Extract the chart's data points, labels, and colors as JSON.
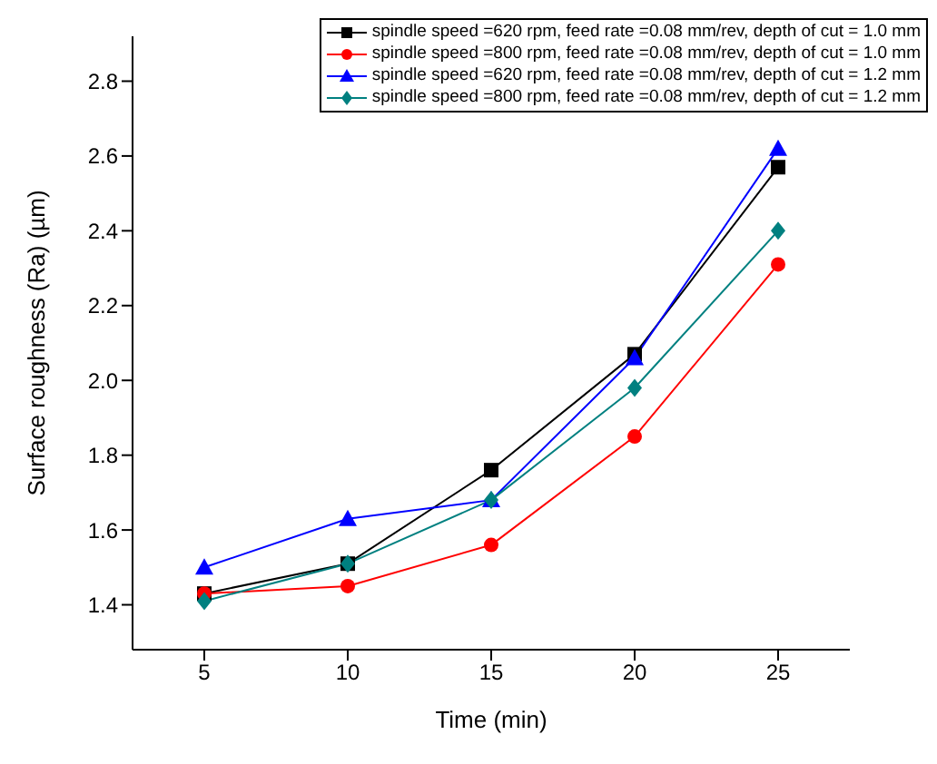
{
  "chart_data": {
    "type": "line",
    "xlabel": "Time (min)",
    "ylabel": "Surface roughness (Ra) (µm)",
    "x": [
      5,
      10,
      15,
      20,
      25
    ],
    "series": [
      {
        "name": "spindle speed =620 rpm, feed rate =0.08 mm/rev, depth of cut = 1.0 mm",
        "color": "#000000",
        "marker": "square",
        "values": [
          1.43,
          1.51,
          1.76,
          2.07,
          2.57
        ]
      },
      {
        "name": "spindle speed =800 rpm, feed rate =0.08 mm/rev, depth of cut = 1.0 mm",
        "color": "#ff0000",
        "marker": "circle",
        "values": [
          1.43,
          1.45,
          1.56,
          1.85,
          2.31
        ]
      },
      {
        "name": "spindle speed =620 rpm, feed rate =0.08 mm/rev, depth of cut = 1.2 mm",
        "color": "#0000ff",
        "marker": "triangle",
        "values": [
          1.5,
          1.63,
          1.68,
          2.06,
          2.62
        ]
      },
      {
        "name": "spindle speed =800 rpm, feed rate =0.08 mm/rev, depth of cut = 1.2 mm",
        "color": "#008080",
        "marker": "diamond",
        "values": [
          1.41,
          1.51,
          1.68,
          1.98,
          2.4
        ]
      }
    ],
    "xlim": [
      2.5,
      27.5
    ],
    "xticks": [
      5,
      10,
      15,
      20,
      25
    ],
    "ylim": [
      1.28,
      2.92
    ],
    "yticks": [
      1.4,
      1.6,
      1.8,
      {
        "value": 2,
        "label": "2.0"
      },
      2.2,
      2.4,
      2.6,
      2.8
    ],
    "grid": false,
    "legend": "top right",
    "line_style": "solid"
  }
}
